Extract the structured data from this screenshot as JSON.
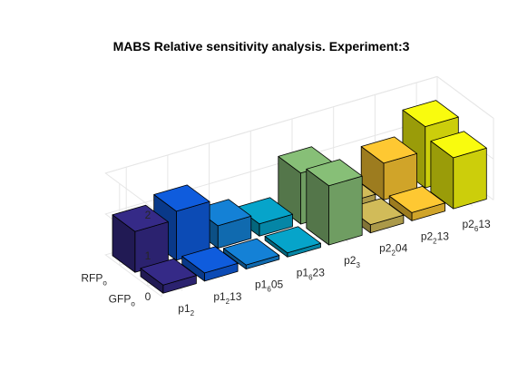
{
  "chart_data": {
    "type": "bar3",
    "title": "MABS Relative sensitivity analysis. Experiment:3",
    "zlim": [
      0,
      2
    ],
    "zticks": [
      0,
      1,
      2
    ],
    "grid": true,
    "x_categories": [
      {
        "base": "p1",
        "sub": "2",
        "tail": ""
      },
      {
        "base": "p1",
        "sub": "2",
        "tail": "13"
      },
      {
        "base": "p1",
        "sub": "6",
        "tail": "05"
      },
      {
        "base": "p1",
        "sub": "6",
        "tail": "23"
      },
      {
        "base": "p2",
        "sub": "3",
        "tail": ""
      },
      {
        "base": "p2",
        "sub": "2",
        "tail": "04"
      },
      {
        "base": "p2",
        "sub": "2",
        "tail": "13"
      },
      {
        "base": "p2",
        "sub": "6",
        "tail": "13"
      }
    ],
    "y_categories": [
      {
        "base": "RFP",
        "sub": "o"
      },
      {
        "base": "GFP",
        "sub": "o"
      }
    ],
    "series": [
      {
        "values": [
          1.0,
          1.2,
          0.55,
          0.3,
          1.25,
          0.2,
          0.9,
          1.5
        ]
      },
      {
        "values": [
          0.2,
          0.2,
          0.1,
          0.1,
          1.45,
          0.2,
          0.2,
          1.25
        ]
      }
    ],
    "colors": [
      "#352a87",
      "#0f5cdd",
      "#1481d6",
      "#06a4ca",
      "#2eb7a4",
      "#87bf77",
      "#d1bb59",
      "#fec832",
      "#f9fb0e"
    ]
  }
}
